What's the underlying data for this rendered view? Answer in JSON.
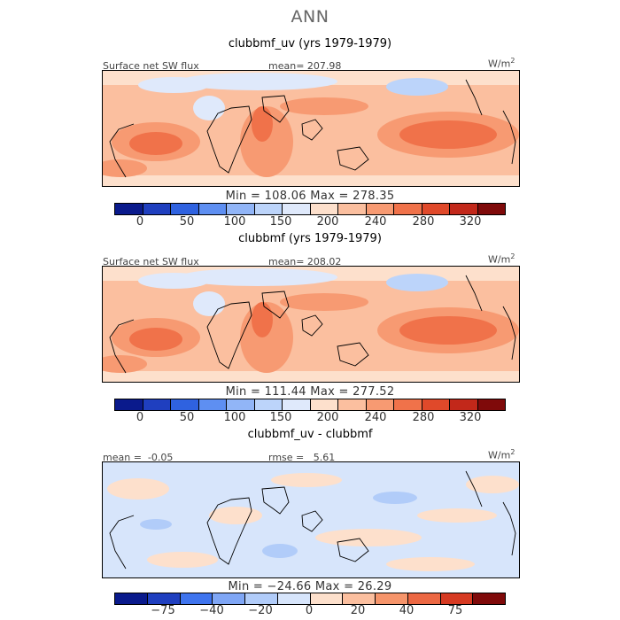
{
  "chart_data": [
    {
      "type": "heatmap",
      "title": "clubbmf_uv (yrs 1979-1979)",
      "variable": "Surface net SW flux",
      "stat_label": "mean=",
      "stat_value": "207.98",
      "units": "W/m",
      "units_sup": "2",
      "min_max": "Min = 108.06 Max = 278.35",
      "colorbar_levels": [
        "0",
        "50",
        "100",
        "150",
        "200",
        "240",
        "280",
        "320"
      ]
    },
    {
      "type": "heatmap",
      "title": "clubbmf (yrs 1979-1979)",
      "variable": "Surface net SW flux",
      "stat_label": "mean=",
      "stat_value": "208.02",
      "units": "W/m",
      "units_sup": "2",
      "min_max": "Min = 111.44 Max = 277.52",
      "colorbar_levels": [
        "0",
        "50",
        "100",
        "150",
        "200",
        "240",
        "280",
        "320"
      ]
    },
    {
      "type": "heatmap",
      "title": "clubbmf_uv - clubbmf",
      "mean_label": "mean =",
      "mean_value": "-0.05",
      "rmse_label": "rmse =",
      "rmse_value": "5.61",
      "units": "W/m",
      "units_sup": "2",
      "min_max": "Min = −24.66 Max = 26.29",
      "colorbar_levels": [
        "−75",
        "−40",
        "−20",
        "0",
        "20",
        "40",
        "75"
      ]
    }
  ],
  "page": {
    "season": "ANN"
  },
  "colors": {
    "abs_scale": [
      "#0a1a8c",
      "#1f3fbf",
      "#2f62e0",
      "#5e8ff2",
      "#91b5f7",
      "#bcd4fa",
      "#dfe9fb",
      "#fde0cc",
      "#fbbf9f",
      "#f79a72",
      "#f0724a",
      "#e0492a",
      "#c2281a",
      "#7f0a0a"
    ],
    "diff_scale": [
      "#0a1a8c",
      "#1f3fbf",
      "#3f74ee",
      "#7fa6f5",
      "#b1ccf9",
      "#d7e5fb",
      "#fde0cc",
      "#fbbf9f",
      "#f6956b",
      "#ec6843",
      "#d63a22",
      "#7f0a0a"
    ]
  }
}
